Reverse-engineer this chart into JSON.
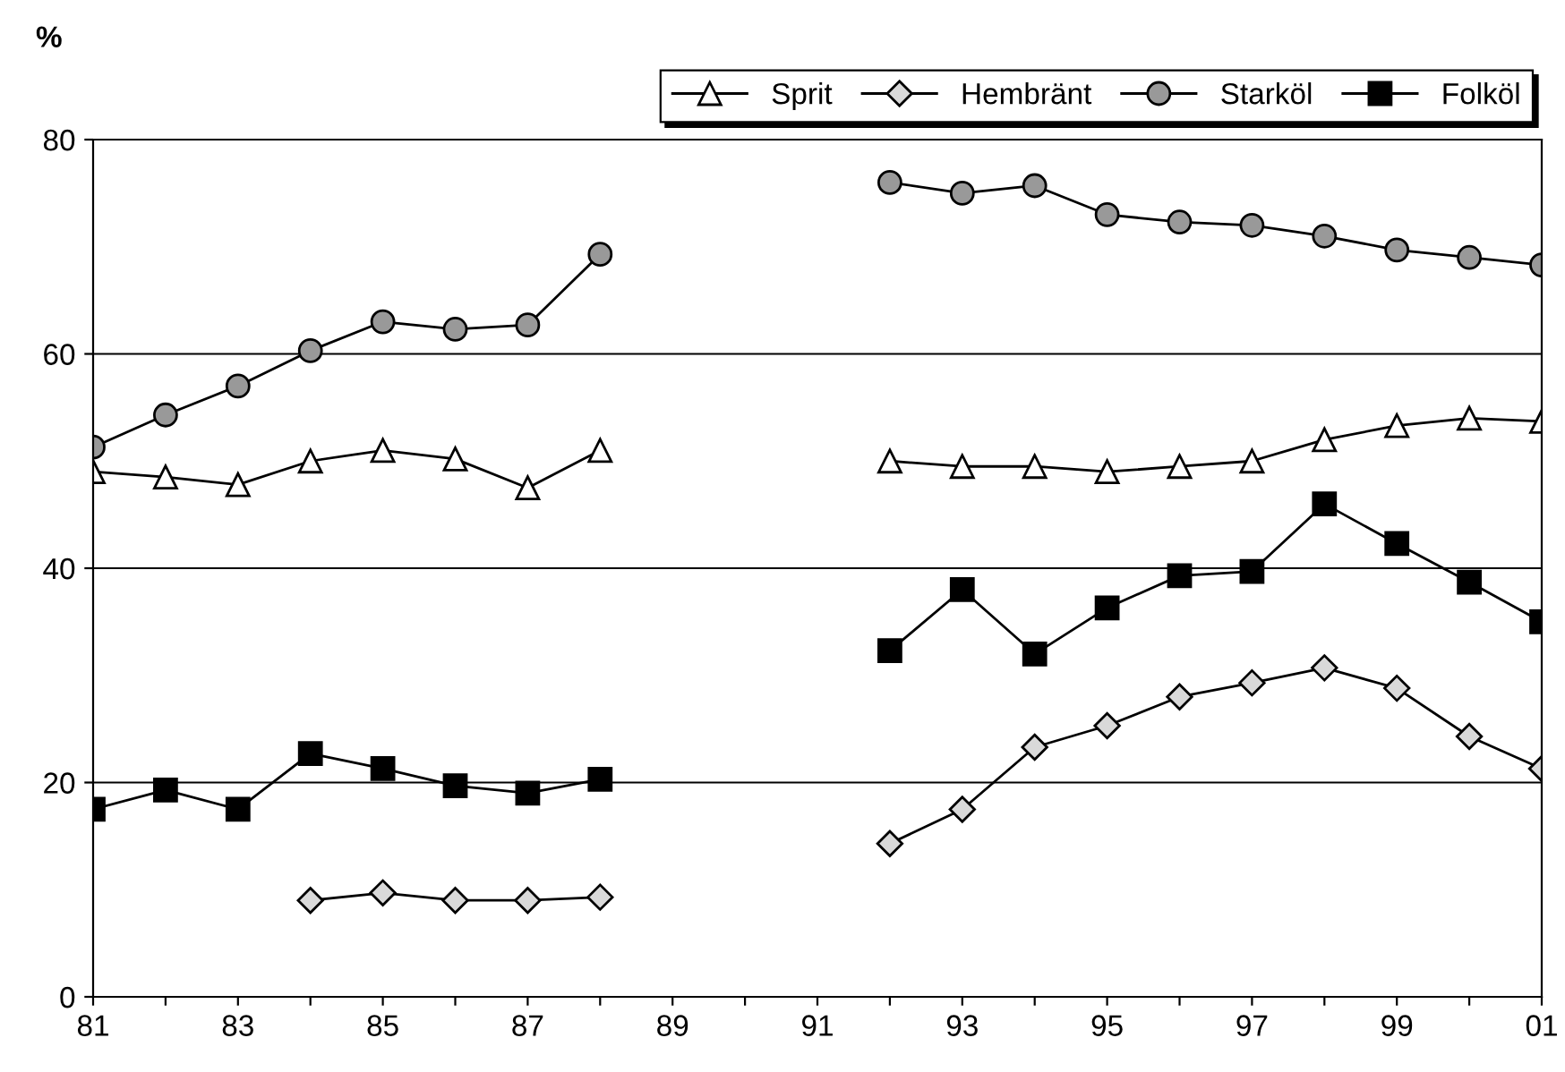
{
  "chart_data": {
    "type": "line",
    "ylabel": "%",
    "categories": [
      "81",
      null,
      "83",
      null,
      "85",
      null,
      "87",
      null,
      "89",
      null,
      "91",
      null,
      "93",
      null,
      "95",
      null,
      "97",
      null,
      "99",
      null,
      "01"
    ],
    "ylim": [
      0,
      80
    ],
    "yticks": [
      0,
      20,
      40,
      60,
      80
    ],
    "grid": "y",
    "legend": "top right",
    "series": [
      {
        "name": "Sprit",
        "color": "#ffffff",
        "marker": "triangle",
        "values": [
          49,
          48.5,
          47.8,
          50,
          51,
          50.2,
          47.5,
          51,
          null,
          null,
          null,
          50,
          49.5,
          49.5,
          49,
          49.5,
          50,
          52,
          53.3,
          54,
          53.7
        ]
      },
      {
        "name": "Hembränt",
        "color": "#d9d9d9",
        "marker": "diamond",
        "values": [
          null,
          null,
          null,
          9,
          9.7,
          9,
          9,
          9.3,
          null,
          null,
          null,
          14.3,
          17.5,
          23.3,
          25.3,
          28,
          29.3,
          30.7,
          28.8,
          24.3,
          21.3
        ]
      },
      {
        "name": "Starköl",
        "color": "#999999",
        "marker": "circle",
        "values": [
          51.3,
          54.3,
          57,
          60.3,
          63,
          62.3,
          62.7,
          69.3,
          null,
          null,
          null,
          76,
          75,
          75.7,
          73,
          72.3,
          72,
          71,
          69.7,
          69,
          68.3
        ]
      },
      {
        "name": "Folköl",
        "color": "#000000",
        "marker": "square",
        "values": [
          17.5,
          19.3,
          17.5,
          22.7,
          21.3,
          19.7,
          19,
          20.3,
          null,
          null,
          null,
          32.3,
          38,
          32,
          36.3,
          39.3,
          39.7,
          46,
          42.3,
          38.7,
          35
        ]
      }
    ]
  }
}
